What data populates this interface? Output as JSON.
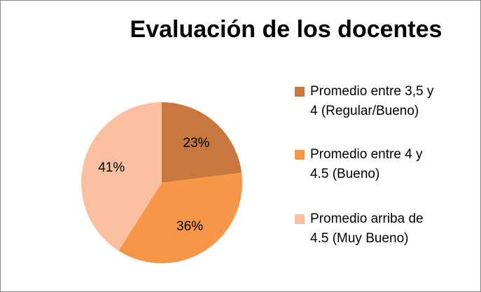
{
  "chart_data": {
    "type": "pie",
    "title": "Evaluación de los docentes",
    "categories": [
      "Promedio entre 3,5 y 4 (Regular/Bueno)",
      "Promedio entre 4 y 4.5 (Bueno)",
      "Promedio arriba de 4.5 (Muy Bueno)"
    ],
    "values": [
      23,
      36,
      41
    ],
    "value_labels": [
      "23%",
      "36%",
      "41%"
    ],
    "colors": [
      "#c8783c",
      "#f79646",
      "#fac0a0"
    ],
    "legend": "right"
  }
}
